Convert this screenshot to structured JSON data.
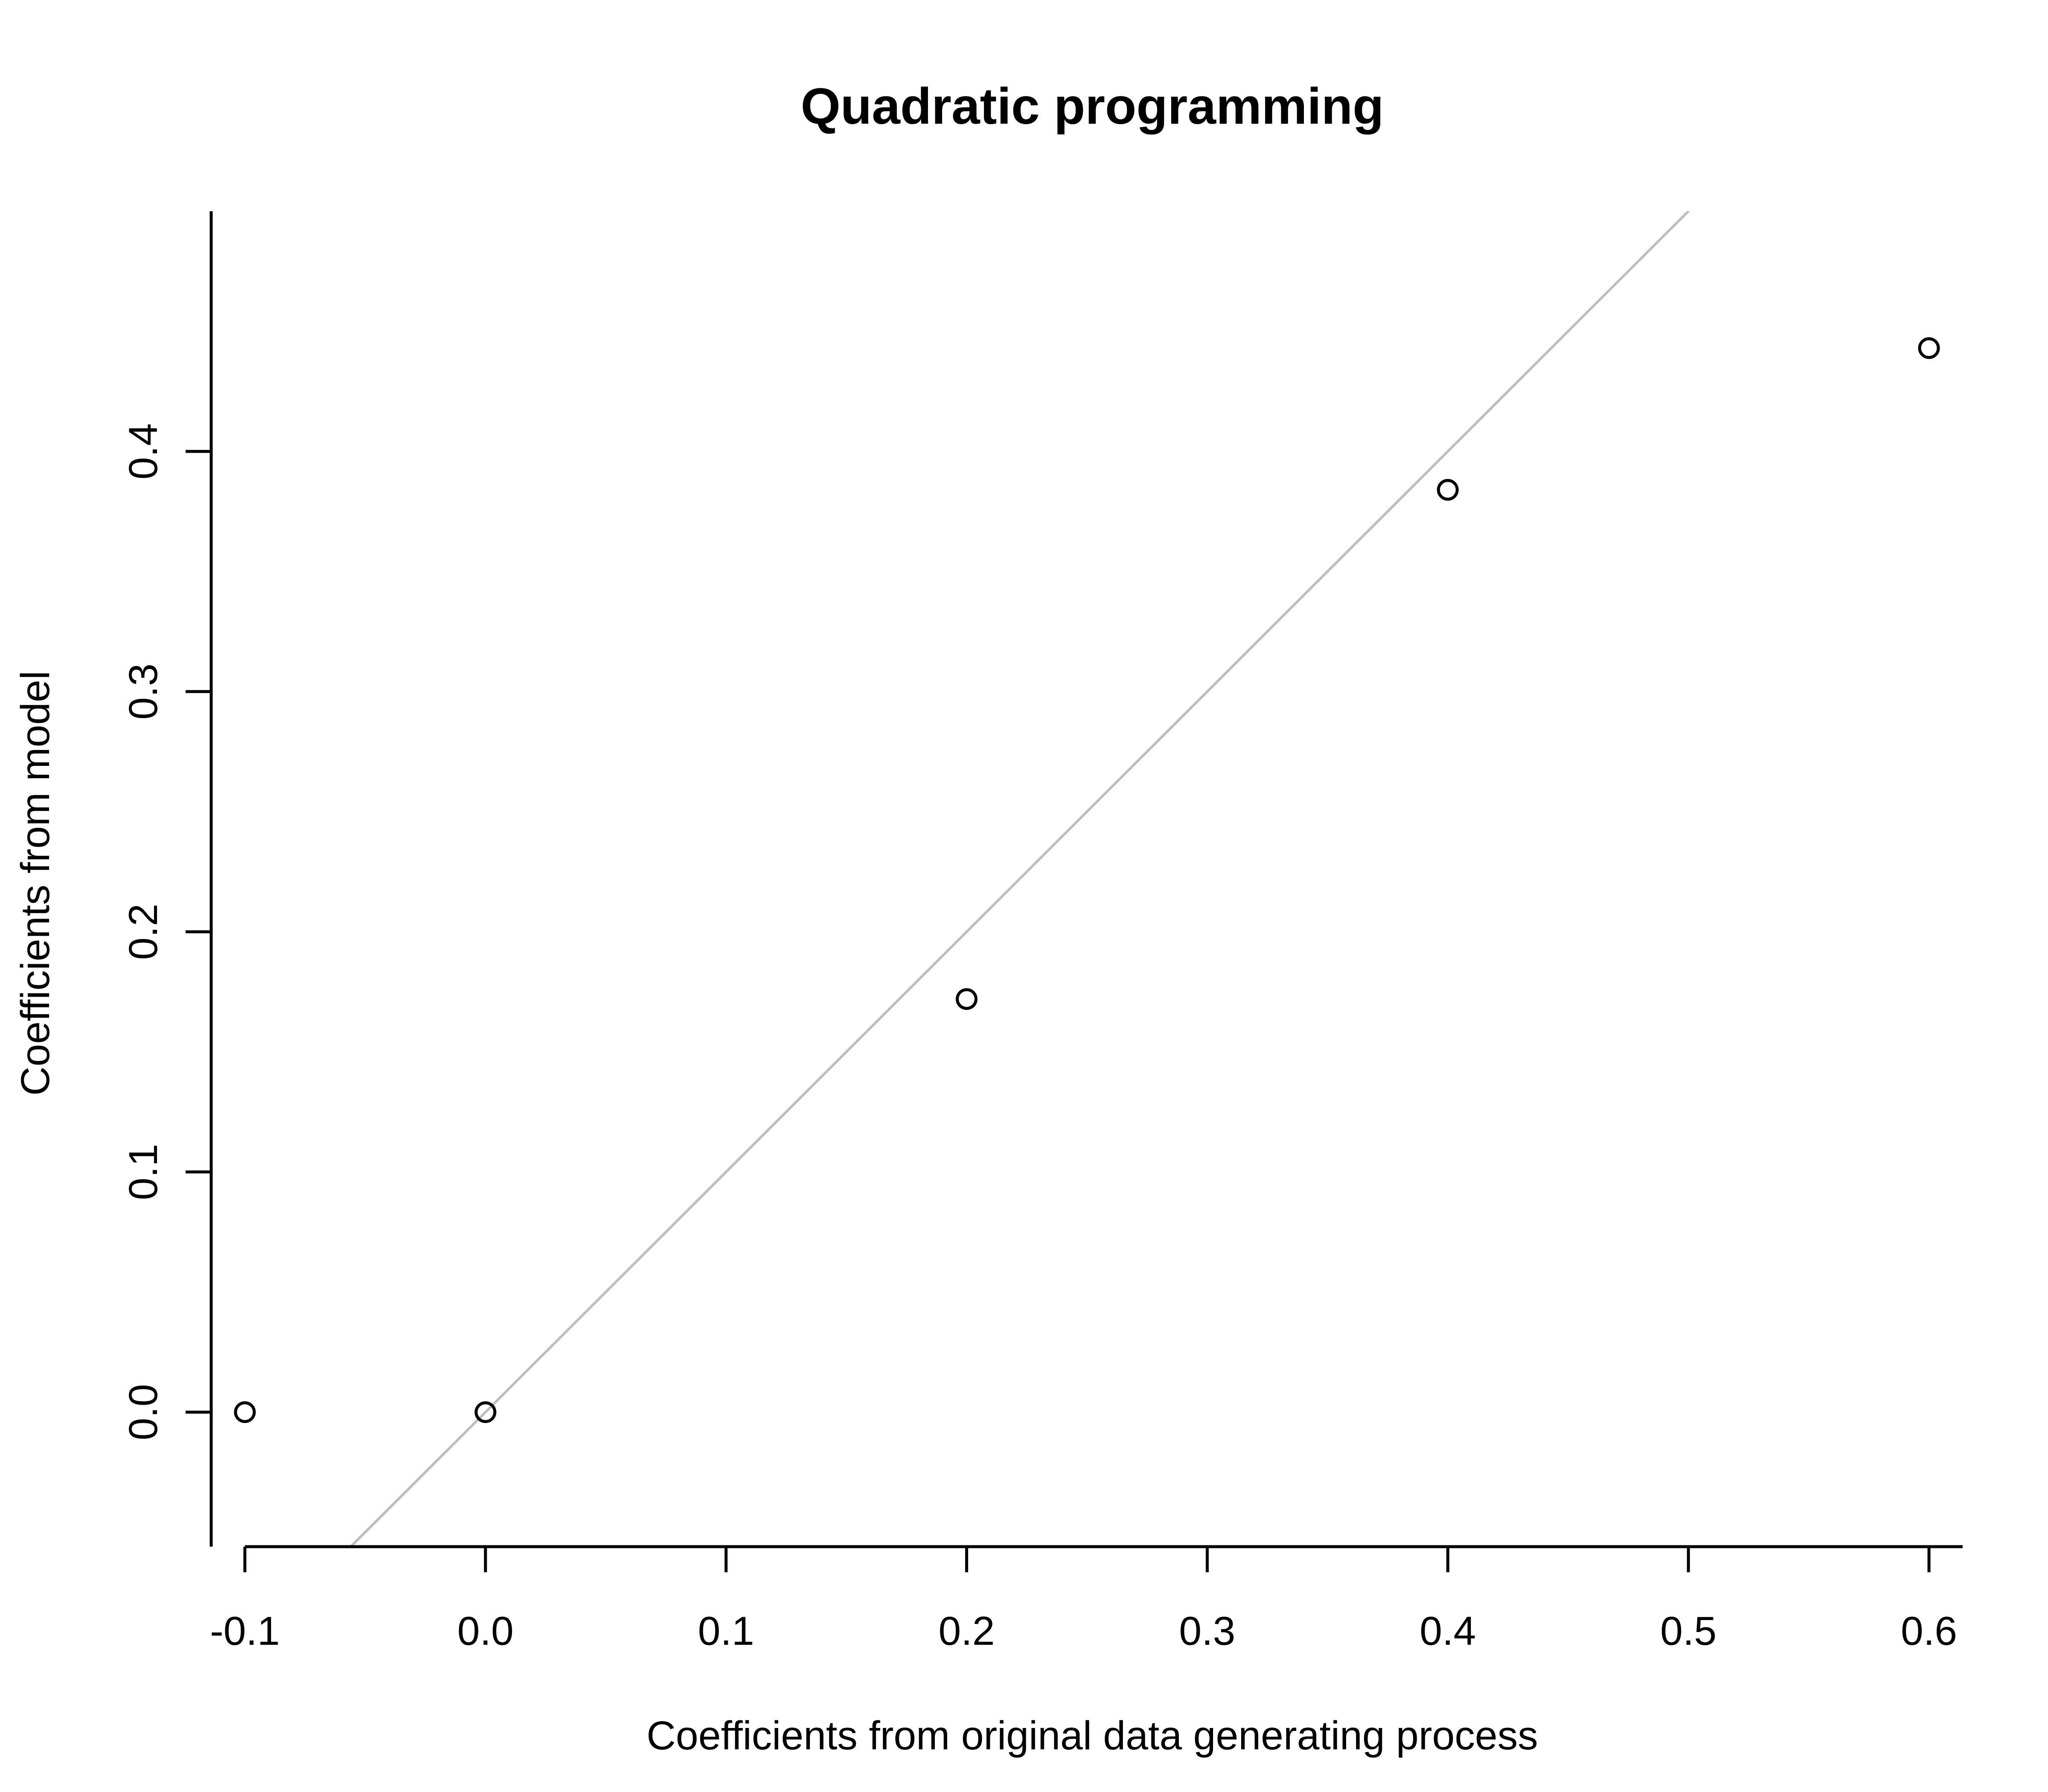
{
  "chart_data": {
    "type": "scatter",
    "title": "Quadratic programming",
    "xlabel": "Coefficients from original data generating process",
    "ylabel": "Coefficients from model",
    "xlim": [
      -0.114,
      0.614
    ],
    "ylim": [
      -0.056,
      0.5
    ],
    "x_ticks": [
      "-0.1",
      "0.0",
      "0.1",
      "0.2",
      "0.3",
      "0.4",
      "0.5",
      "0.6"
    ],
    "y_ticks": [
      "0.0",
      "0.1",
      "0.2",
      "0.3",
      "0.4"
    ],
    "points": [
      {
        "x": -0.1,
        "y": 0.0
      },
      {
        "x": 0.0,
        "y": 0.0
      },
      {
        "x": 0.2,
        "y": 0.172
      },
      {
        "x": 0.4,
        "y": 0.384
      },
      {
        "x": 0.6,
        "y": 0.443
      }
    ],
    "reference_line": {
      "slope": 1,
      "intercept": 0,
      "color": "#bebebe"
    },
    "grid": false,
    "legend": "none",
    "point_color": "#000000"
  }
}
